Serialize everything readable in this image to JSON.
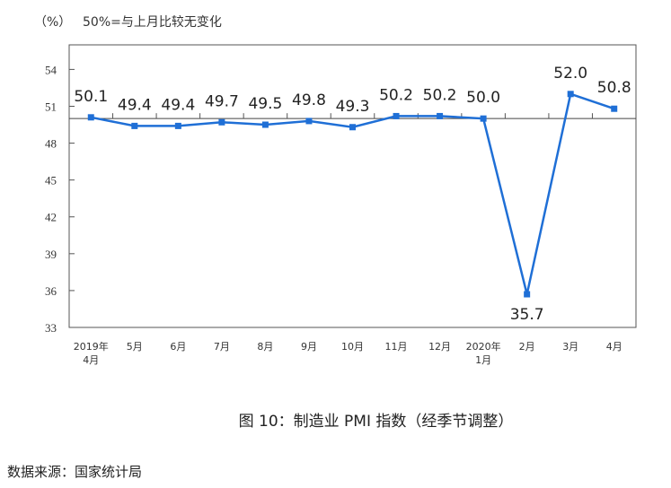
{
  "chart_data": {
    "type": "line",
    "unit_label": "（%）",
    "note": "50%=与上月比较无变化",
    "categories": [
      [
        "2019年",
        "4月"
      ],
      [
        "5月"
      ],
      [
        "6月"
      ],
      [
        "7月"
      ],
      [
        "8月"
      ],
      [
        "9月"
      ],
      [
        "10月"
      ],
      [
        "11月"
      ],
      [
        "12月"
      ],
      [
        "2020年",
        "1月"
      ],
      [
        "2月"
      ],
      [
        "3月"
      ],
      [
        "4月"
      ]
    ],
    "values": [
      50.1,
      49.4,
      49.4,
      49.7,
      49.5,
      49.8,
      49.3,
      50.2,
      50.2,
      50.0,
      35.7,
      52.0,
      50.8
    ],
    "data_labels": [
      "50.1",
      "49.4",
      "49.4",
      "49.7",
      "49.5",
      "49.8",
      "49.3",
      "50.2",
      "50.2",
      "50.0",
      "35.7",
      "52.0",
      "50.8"
    ],
    "yticks": [
      33,
      36,
      39,
      42,
      45,
      48,
      51,
      54
    ],
    "ylim": [
      33,
      56
    ],
    "reference_line": 50,
    "grid": false,
    "line_color": "#1f6fd6",
    "title": "图 10：制造业 PMI 指数（经季节调整）"
  },
  "source": "数据来源：国家统计局"
}
